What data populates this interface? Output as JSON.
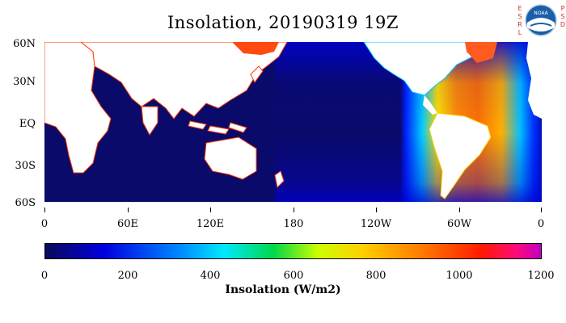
{
  "title": "Insolation, 20190319 19Z",
  "logo": {
    "left_letters": "ESRL",
    "right_letters": "PSD",
    "center_text": "NOAA"
  },
  "map": {
    "y_labels": [
      "60N",
      "30N",
      "EQ",
      "30S",
      "60S"
    ],
    "x_labels": [
      "0",
      "60E",
      "120E",
      "180",
      "120W",
      "60W",
      "0"
    ]
  },
  "colorbar": {
    "labels": [
      "0",
      "200",
      "400",
      "600",
      "800",
      "1000",
      "1200"
    ],
    "title": "Insolation (W/m2)"
  },
  "colors": {
    "ocean_dark": "#0a0a5a",
    "land": "#ffffff",
    "coast": "#ff3a00"
  }
}
